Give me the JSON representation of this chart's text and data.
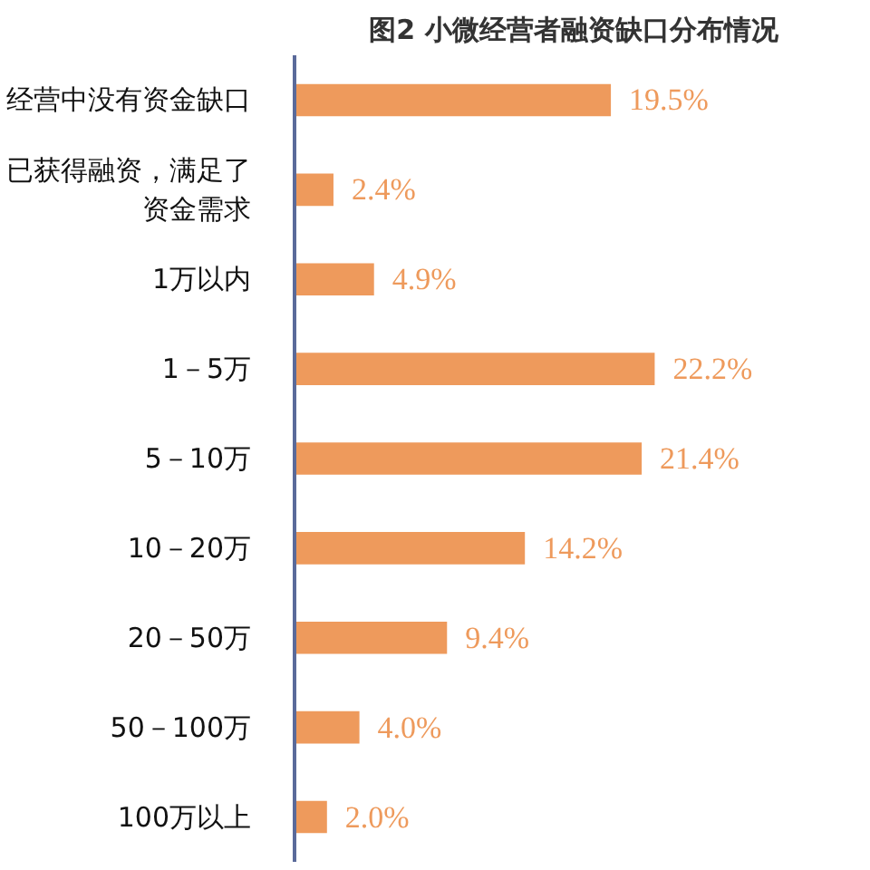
{
  "chart_data": {
    "type": "bar",
    "orientation": "horizontal",
    "title": "图2 小微经营者融资缺口分布情况",
    "categories": [
      "经营中没有资金缺口",
      "已获得融资，满足了资金需求",
      "1万以内",
      "1－5万",
      "5－10万",
      "10－20万",
      "20－50万",
      "50－100万",
      "100万以上"
    ],
    "values": [
      19.5,
      2.4,
      4.9,
      22.2,
      21.4,
      14.2,
      9.4,
      4.0,
      2.0
    ],
    "value_labels": [
      "19.5%",
      "2.4%",
      "4.9%",
      "22.2%",
      "21.4%",
      "14.2%",
      "9.4%",
      "4.0%",
      "2.0%"
    ],
    "color": "#ee9a5c",
    "grid": false
  }
}
